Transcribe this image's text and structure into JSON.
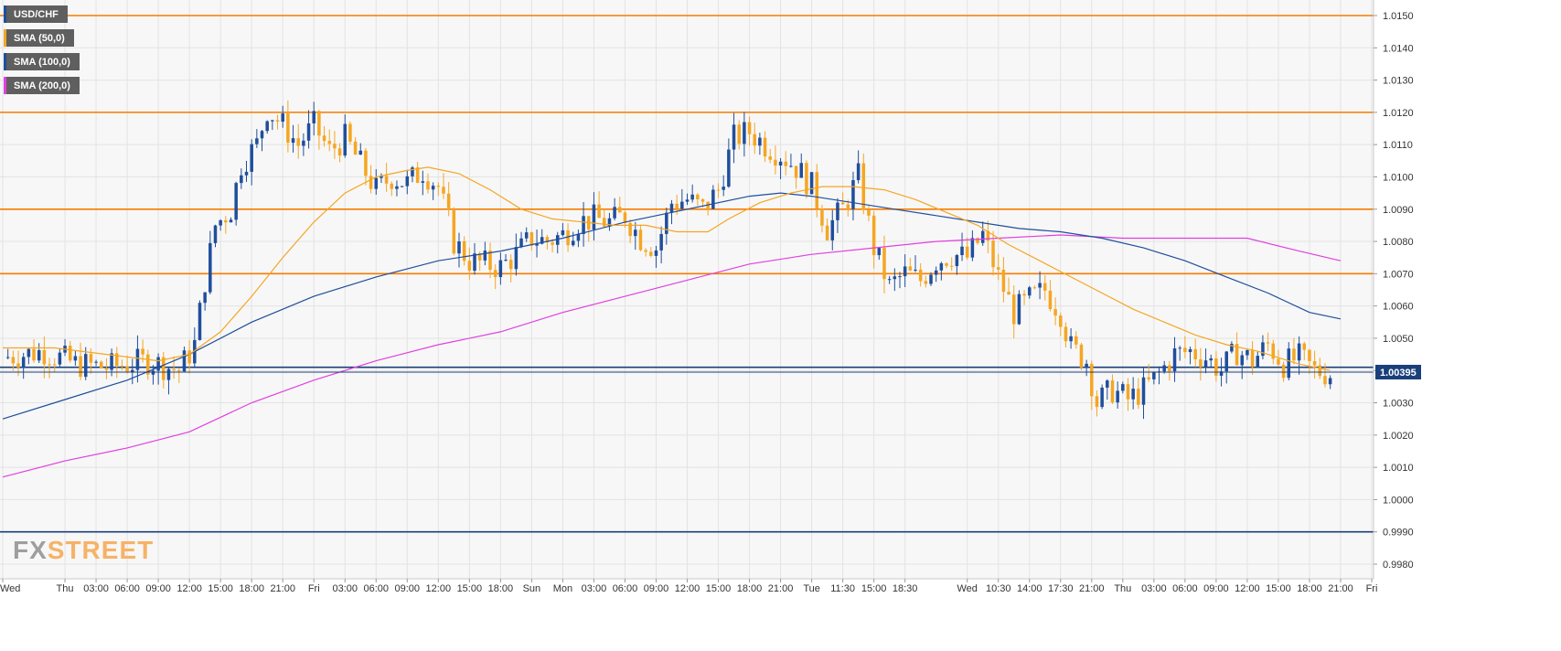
{
  "chart_data": {
    "type": "candlestick",
    "symbol": "USD/CHF",
    "legend": [
      {
        "name": "USD/CHF",
        "color": "#1f4e9c"
      },
      {
        "name": "SMA (50,0)",
        "color": "#f5a623"
      },
      {
        "name": "SMA (100,0)",
        "color": "#1f4e9c"
      },
      {
        "name": "SMA (200,0)",
        "color": "#e040e0"
      }
    ],
    "ylim": [
      0.9975,
      1.0155
    ],
    "y_ticks": [
      "1.0150",
      "1.0140",
      "1.0130",
      "1.0120",
      "1.0110",
      "1.0100",
      "1.0090",
      "1.0080",
      "1.0070",
      "1.0060",
      "1.0050",
      "1.0040",
      "1.0030",
      "1.0020",
      "1.0010",
      "1.0000",
      "0.9990",
      "0.9980"
    ],
    "y_tick_values": [
      1.015,
      1.014,
      1.013,
      1.012,
      1.011,
      1.01,
      1.009,
      1.008,
      1.007,
      1.006,
      1.005,
      1.004,
      1.003,
      1.002,
      1.001,
      1.0,
      0.999,
      0.998
    ],
    "x_labels": [
      "Wed",
      "Thu",
      "03:00",
      "06:00",
      "09:00",
      "12:00",
      "15:00",
      "18:00",
      "21:00",
      "Fri",
      "03:00",
      "06:00",
      "09:00",
      "12:00",
      "15:00",
      "18:00",
      "Sun",
      "Mon",
      "03:00",
      "06:00",
      "09:00",
      "12:00",
      "15:00",
      "18:00",
      "21:00",
      "Tue",
      "11:30",
      "15:00",
      "18:30",
      "Wed",
      "10:30",
      "14:00",
      "17:30",
      "21:00",
      "Thu",
      "03:00",
      "06:00",
      "09:00",
      "12:00",
      "15:00",
      "18:00",
      "21:00",
      "Fri"
    ],
    "x_label_index": [
      0,
      12,
      18,
      24,
      30,
      36,
      42,
      48,
      54,
      60,
      66,
      72,
      78,
      84,
      90,
      96,
      102,
      108,
      114,
      120,
      126,
      132,
      138,
      144,
      150,
      156,
      162,
      168,
      174,
      186,
      192,
      198,
      204,
      210,
      216,
      222,
      228,
      234,
      240,
      246,
      252,
      258,
      264
    ],
    "n_slots": 265,
    "last_price": "1.00395",
    "last_price_value": 1.00395,
    "horizontal_lines": [
      {
        "value": 1.015,
        "color": "#f57c00"
      },
      {
        "value": 1.012,
        "color": "#f57c00"
      },
      {
        "value": 1.009,
        "color": "#f57c00"
      },
      {
        "value": 1.007,
        "color": "#f57c00"
      },
      {
        "value": 1.0041,
        "color": "#1a3f7a"
      },
      {
        "value": 0.999,
        "color": "#1a3f7a"
      }
    ],
    "close_path": [
      [
        0,
        1.0044
      ],
      [
        8,
        1.0046
      ],
      [
        14,
        1.0042
      ],
      [
        20,
        1.0041
      ],
      [
        28,
        1.0043
      ],
      [
        34,
        1.004
      ],
      [
        37,
        1.0048
      ],
      [
        39,
        1.0068
      ],
      [
        41,
        1.0085
      ],
      [
        44,
        1.009
      ],
      [
        46,
        1.0104
      ],
      [
        49,
        1.011
      ],
      [
        51,
        1.0121
      ],
      [
        54,
        1.0116
      ],
      [
        57,
        1.011
      ],
      [
        60,
        1.0116
      ],
      [
        63,
        1.0108
      ],
      [
        66,
        1.0112
      ],
      [
        69,
        1.0104
      ],
      [
        72,
        1.0096
      ],
      [
        75,
        1.01
      ],
      [
        78,
        1.0098
      ],
      [
        81,
        1.0102
      ],
      [
        84,
        1.0097
      ],
      [
        87,
        1.008
      ],
      [
        90,
        1.0074
      ],
      [
        93,
        1.0073
      ],
      [
        96,
        1.0072
      ],
      [
        99,
        1.0076
      ],
      [
        102,
        1.0081
      ],
      [
        105,
        1.008
      ],
      [
        108,
        1.0082
      ],
      [
        111,
        1.0086
      ],
      [
        114,
        1.0087
      ],
      [
        117,
        1.0086
      ],
      [
        120,
        1.0088
      ],
      [
        123,
        1.0081
      ],
      [
        126,
        1.0078
      ],
      [
        129,
        1.0092
      ],
      [
        132,
        1.0093
      ],
      [
        135,
        1.009
      ],
      [
        138,
        1.0096
      ],
      [
        141,
        1.0112
      ],
      [
        144,
        1.0114
      ],
      [
        147,
        1.011
      ],
      [
        150,
        1.0107
      ],
      [
        153,
        1.0103
      ],
      [
        156,
        1.0097
      ],
      [
        159,
        1.0084
      ],
      [
        162,
        1.009
      ],
      [
        165,
        1.01
      ],
      [
        168,
        1.0078
      ],
      [
        171,
        1.0066
      ],
      [
        174,
        1.007
      ],
      [
        177,
        1.0068
      ],
      [
        180,
        1.0074
      ],
      [
        183,
        1.0076
      ],
      [
        186,
        1.0075
      ],
      [
        189,
        1.0082
      ],
      [
        192,
        1.0069
      ],
      [
        195,
        1.0058
      ],
      [
        198,
        1.0062
      ],
      [
        201,
        1.0065
      ],
      [
        204,
        1.0058
      ],
      [
        206,
        1.0047
      ],
      [
        209,
        1.0043
      ],
      [
        211,
        1.003
      ],
      [
        214,
        1.0034
      ],
      [
        217,
        1.0031
      ],
      [
        220,
        1.0034
      ],
      [
        223,
        1.0039
      ],
      [
        226,
        1.0045
      ],
      [
        229,
        1.0046
      ],
      [
        232,
        1.0044
      ],
      [
        235,
        1.004
      ],
      [
        238,
        1.0046
      ],
      [
        241,
        1.0043
      ],
      [
        244,
        1.0048
      ],
      [
        247,
        1.0042
      ],
      [
        250,
        1.0044
      ],
      [
        253,
        1.004
      ],
      [
        256,
        1.0039
      ]
    ],
    "sma50": [
      [
        0,
        1.0047
      ],
      [
        10,
        1.0047
      ],
      [
        20,
        1.0045
      ],
      [
        30,
        1.0043
      ],
      [
        36,
        1.0045
      ],
      [
        42,
        1.0052
      ],
      [
        48,
        1.0063
      ],
      [
        54,
        1.0075
      ],
      [
        60,
        1.0086
      ],
      [
        66,
        1.0095
      ],
      [
        72,
        1.01
      ],
      [
        78,
        1.0102
      ],
      [
        82,
        1.0103
      ],
      [
        88,
        1.0101
      ],
      [
        94,
        1.0096
      ],
      [
        100,
        1.009
      ],
      [
        106,
        1.0087
      ],
      [
        112,
        1.0086
      ],
      [
        118,
        1.0085
      ],
      [
        124,
        1.0085
      ],
      [
        130,
        1.0083
      ],
      [
        136,
        1.0083
      ],
      [
        140,
        1.0087
      ],
      [
        146,
        1.0092
      ],
      [
        152,
        1.0095
      ],
      [
        158,
        1.0097
      ],
      [
        164,
        1.0097
      ],
      [
        170,
        1.0096
      ],
      [
        176,
        1.0093
      ],
      [
        182,
        1.0089
      ],
      [
        188,
        1.0085
      ],
      [
        194,
        1.0079
      ],
      [
        200,
        1.0074
      ],
      [
        206,
        1.0069
      ],
      [
        212,
        1.0064
      ],
      [
        218,
        1.0059
      ],
      [
        224,
        1.0055
      ],
      [
        230,
        1.0051
      ],
      [
        236,
        1.0048
      ],
      [
        242,
        1.0046
      ],
      [
        250,
        1.0042
      ],
      [
        256,
        1.004
      ]
    ],
    "sma100": [
      [
        0,
        1.0025
      ],
      [
        12,
        1.0031
      ],
      [
        24,
        1.0037
      ],
      [
        36,
        1.0045
      ],
      [
        48,
        1.0055
      ],
      [
        60,
        1.0063
      ],
      [
        72,
        1.0069
      ],
      [
        84,
        1.0074
      ],
      [
        96,
        1.0077
      ],
      [
        108,
        1.0081
      ],
      [
        120,
        1.0086
      ],
      [
        132,
        1.009
      ],
      [
        144,
        1.0094
      ],
      [
        150,
        1.0095
      ],
      [
        156,
        1.0094
      ],
      [
        164,
        1.0092
      ],
      [
        172,
        1.009
      ],
      [
        180,
        1.0088
      ],
      [
        188,
        1.0086
      ],
      [
        196,
        1.0084
      ],
      [
        204,
        1.0083
      ],
      [
        212,
        1.0081
      ],
      [
        220,
        1.0078
      ],
      [
        228,
        1.0074
      ],
      [
        236,
        1.0069
      ],
      [
        244,
        1.0064
      ],
      [
        252,
        1.0058
      ],
      [
        258,
        1.0056
      ]
    ],
    "sma200": [
      [
        0,
        1.0007
      ],
      [
        12,
        1.0012
      ],
      [
        24,
        1.0016
      ],
      [
        36,
        1.0021
      ],
      [
        48,
        1.003
      ],
      [
        60,
        1.0037
      ],
      [
        72,
        1.0043
      ],
      [
        84,
        1.0048
      ],
      [
        96,
        1.0052
      ],
      [
        108,
        1.0058
      ],
      [
        120,
        1.0063
      ],
      [
        132,
        1.0068
      ],
      [
        144,
        1.0073
      ],
      [
        156,
        1.0076
      ],
      [
        168,
        1.0078
      ],
      [
        180,
        1.008
      ],
      [
        192,
        1.0081
      ],
      [
        204,
        1.0082
      ],
      [
        216,
        1.0081
      ],
      [
        228,
        1.0081
      ],
      [
        240,
        1.0081
      ],
      [
        250,
        1.0077
      ],
      [
        258,
        1.0074
      ]
    ]
  },
  "brand": {
    "fx": "FX",
    "street": "STREET"
  }
}
